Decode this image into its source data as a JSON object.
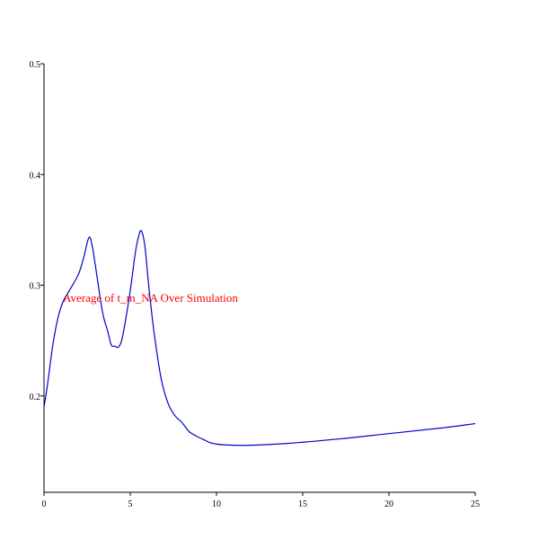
{
  "chart_data": {
    "type": "line",
    "title": "",
    "xlabel": "",
    "ylabel": "",
    "xlim": [
      0,
      25
    ],
    "ylim": [
      0.113,
      0.5
    ],
    "x_ticks": [
      0,
      5,
      10,
      15,
      20,
      25
    ],
    "y_ticks": [
      0.2,
      0.3,
      0.4,
      0.5
    ],
    "x_tick_labels": [
      "0",
      "5",
      "10",
      "15",
      "20",
      "25"
    ],
    "y_tick_labels": [
      "0.2",
      "0.3",
      "0.4",
      "0.5"
    ],
    "grid": false,
    "annotation": {
      "text": "Average of t_m_NA Over Simulation",
      "color": "#ff0000",
      "x": 1.1,
      "y": 0.285
    },
    "series": [
      {
        "color": "#0000cc",
        "x": [
          0,
          0.2,
          0.5,
          0.8,
          1.1,
          1.5,
          2.0,
          2.3,
          2.6,
          2.8,
          3.1,
          3.4,
          3.7,
          3.9,
          4.1,
          4.3,
          4.5,
          4.7,
          5.0,
          5.3,
          5.5,
          5.65,
          5.85,
          6.1,
          6.4,
          6.8,
          7.2,
          7.6,
          8.0,
          8.4,
          8.8,
          9.2,
          9.6,
          10.0,
          11.0,
          12.0,
          14.0,
          17.0,
          20.0,
          23.0,
          25.0
        ],
        "y": [
          0.19,
          0.21,
          0.245,
          0.27,
          0.285,
          0.296,
          0.31,
          0.325,
          0.343,
          0.335,
          0.305,
          0.275,
          0.258,
          0.246,
          0.245,
          0.244,
          0.25,
          0.266,
          0.295,
          0.33,
          0.345,
          0.349,
          0.335,
          0.295,
          0.255,
          0.215,
          0.193,
          0.182,
          0.176,
          0.168,
          0.164,
          0.161,
          0.158,
          0.1565,
          0.1555,
          0.1555,
          0.157,
          0.161,
          0.166,
          0.171,
          0.175
        ]
      }
    ]
  }
}
